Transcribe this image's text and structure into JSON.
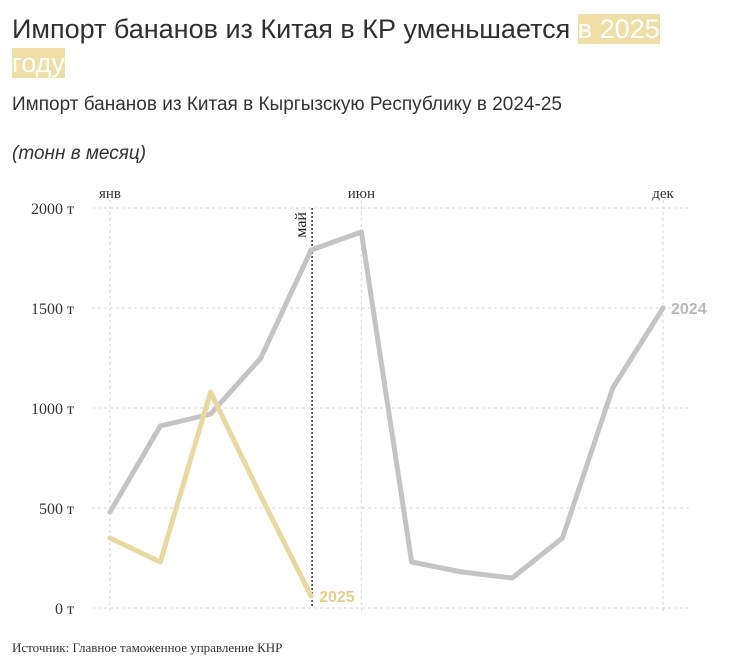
{
  "title_main": "Импорт бананов из Китая в КР уменьшается ",
  "title_highlight": "в 2025 году",
  "subtitle": "Импорт бананов из Китая в Кыргызскую Республику в 2024-25",
  "unit_note": "(тонн в месяц)",
  "source": "Источник: Главное таможенное управление КНР",
  "colors": {
    "series_2024": "#c4c4c4",
    "series_2025": "#e8d9a0",
    "label_2024": "#b9b9b9",
    "label_2025": "#e0cf8a",
    "highlight": "#efdfa6"
  },
  "chart_data": {
    "type": "line",
    "title": "Импорт бананов из Китая в КР уменьшается в 2025 году",
    "subtitle": "Импорт бананов из Китая в Кыргызскую Республику в 2024-25",
    "ylabel": "(тонн в месяц)",
    "xlabel": "",
    "months": [
      1,
      2,
      3,
      4,
      5,
      6,
      7,
      8,
      9,
      10,
      11,
      12
    ],
    "x_tick_labels": [
      {
        "month": 1,
        "label": "янв"
      },
      {
        "month": 6,
        "label": "июн"
      },
      {
        "month": 12,
        "label": "дек"
      }
    ],
    "y_ticks": [
      0,
      500,
      1000,
      1500,
      2000
    ],
    "y_tick_labels": [
      "0 т",
      "500 т",
      "1000 т",
      "1500 т",
      "2000 т"
    ],
    "ylim": [
      0,
      2000
    ],
    "grid": true,
    "series": [
      {
        "name": "2024",
        "values": [
          480,
          910,
          970,
          1250,
          1790,
          1880,
          230,
          180,
          150,
          350,
          1100,
          1500
        ]
      },
      {
        "name": "2025",
        "values": [
          350,
          230,
          1080,
          560,
          60
        ]
      }
    ],
    "annotations": [
      {
        "month": 5,
        "label": "май"
      }
    ]
  }
}
